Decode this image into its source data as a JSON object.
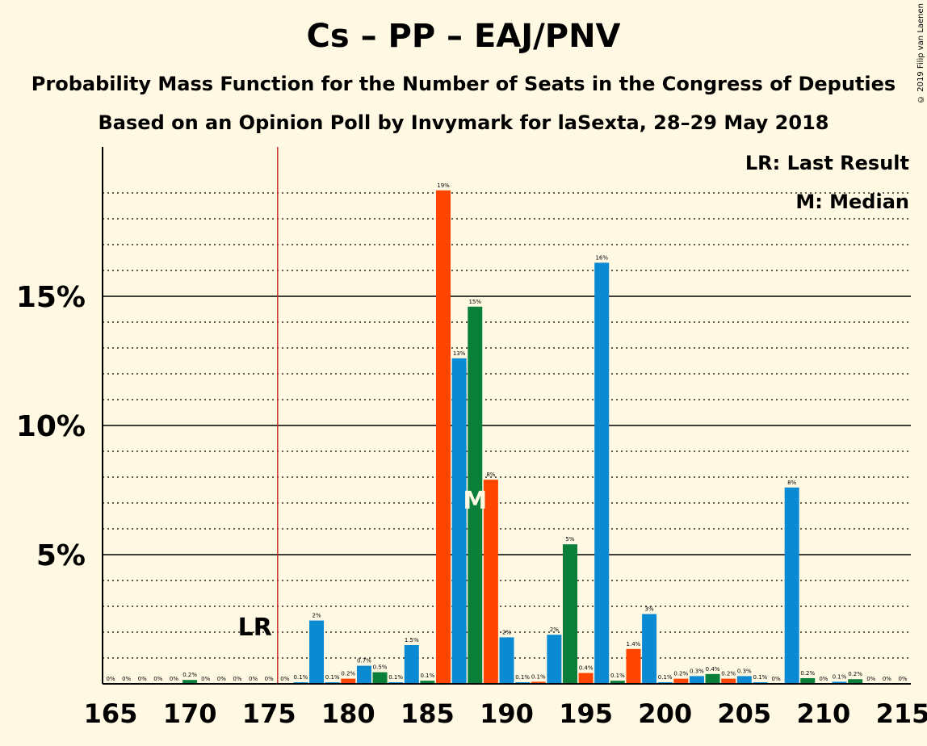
{
  "header": {
    "title": "Cs – PP – EAJ/PNV",
    "subtitle1": "Probability Mass Function for the Number of Seats in the Congress of Deputies",
    "subtitle2": "Based on an Opinion Poll by Invymark for laSexta, 28–29 May 2018",
    "copyright": "© 2019 Filip van Laenen"
  },
  "colors": {
    "background": "#fff8e2",
    "blue": "#0a8ad3",
    "orange": "#ff4500",
    "green": "#0a7f3a",
    "lr_line": "#cc2222"
  },
  "chart_data": {
    "type": "bar",
    "xlim": [
      165,
      215
    ],
    "ylim": [
      0,
      20
    ],
    "x_ticks": [
      "165",
      "170",
      "175",
      "180",
      "185",
      "190",
      "195",
      "200",
      "205",
      "210",
      "215"
    ],
    "y_ticks": [
      "5%",
      "10%",
      "15%"
    ],
    "legend": [
      "LR: Last Result",
      "M: Median"
    ],
    "last_result": {
      "seats": 176,
      "label": "LR"
    },
    "median": {
      "seats": 188,
      "label": "M"
    },
    "bars": [
      {
        "x": 165,
        "value": 0,
        "label": "0%",
        "color": "blue"
      },
      {
        "x": 166,
        "value": 0,
        "label": "0%",
        "color": "blue"
      },
      {
        "x": 167,
        "value": 0,
        "label": "0%",
        "color": "blue"
      },
      {
        "x": 168,
        "value": 0,
        "label": "0%",
        "color": "blue"
      },
      {
        "x": 169,
        "value": 0,
        "label": "0%",
        "color": "blue"
      },
      {
        "x": 170,
        "value": 0.15,
        "label": "0.2%",
        "color": "green"
      },
      {
        "x": 171,
        "value": 0,
        "label": "0%",
        "color": "blue"
      },
      {
        "x": 172,
        "value": 0,
        "label": "0%",
        "color": "blue"
      },
      {
        "x": 173,
        "value": 0,
        "label": "0%",
        "color": "blue"
      },
      {
        "x": 174,
        "value": 0,
        "label": "0%",
        "color": "blue"
      },
      {
        "x": 175,
        "value": 0,
        "label": "0%",
        "color": "blue"
      },
      {
        "x": 176,
        "value": 0,
        "label": "0%",
        "color": "blue"
      },
      {
        "x": 177,
        "value": 0.06,
        "label": "0.1%",
        "color": "blue"
      },
      {
        "x": 178,
        "value": 2.45,
        "label": "2%",
        "color": "blue"
      },
      {
        "x": 179,
        "value": 0.06,
        "label": "0.1%",
        "color": "blue"
      },
      {
        "x": 180,
        "value": 0.2,
        "label": "0.2%",
        "color": "orange"
      },
      {
        "x": 181,
        "value": 0.7,
        "label": "0.7%",
        "color": "blue"
      },
      {
        "x": 182,
        "value": 0.45,
        "label": "0.5%",
        "color": "green"
      },
      {
        "x": 183,
        "value": 0.06,
        "label": "0.1%",
        "color": "blue"
      },
      {
        "x": 184,
        "value": 1.5,
        "label": "1.5%",
        "color": "blue"
      },
      {
        "x": 185,
        "value": 0.12,
        "label": "0.1%",
        "color": "green"
      },
      {
        "x": 186,
        "value": 19.1,
        "label": "19%",
        "color": "orange"
      },
      {
        "x": 187,
        "value": 12.6,
        "label": "13%",
        "color": "blue"
      },
      {
        "x": 188,
        "value": 14.6,
        "label": "15%",
        "color": "green"
      },
      {
        "x": 189,
        "value": 7.9,
        "label": "8%",
        "color": "orange"
      },
      {
        "x": 190,
        "value": 1.8,
        "label": "2%",
        "color": "blue"
      },
      {
        "x": 191,
        "value": 0.06,
        "label": "0.1%",
        "color": "blue"
      },
      {
        "x": 192,
        "value": 0.08,
        "label": "0.1%",
        "color": "orange"
      },
      {
        "x": 193,
        "value": 1.9,
        "label": "2%",
        "color": "blue"
      },
      {
        "x": 194,
        "value": 5.4,
        "label": "5%",
        "color": "green"
      },
      {
        "x": 195,
        "value": 0.42,
        "label": "0.4%",
        "color": "orange"
      },
      {
        "x": 196,
        "value": 16.3,
        "label": "16%",
        "color": "blue"
      },
      {
        "x": 197,
        "value": 0.12,
        "label": "0.1%",
        "color": "green"
      },
      {
        "x": 198,
        "value": 1.35,
        "label": "1.4%",
        "color": "orange"
      },
      {
        "x": 199,
        "value": 2.7,
        "label": "3%",
        "color": "blue"
      },
      {
        "x": 200,
        "value": 0.06,
        "label": "0.1%",
        "color": "blue"
      },
      {
        "x": 201,
        "value": 0.2,
        "label": "0.2%",
        "color": "orange"
      },
      {
        "x": 202,
        "value": 0.3,
        "label": "0.3%",
        "color": "blue"
      },
      {
        "x": 203,
        "value": 0.38,
        "label": "0.4%",
        "color": "green"
      },
      {
        "x": 204,
        "value": 0.2,
        "label": "0.2%",
        "color": "orange"
      },
      {
        "x": 205,
        "value": 0.3,
        "label": "0.3%",
        "color": "blue"
      },
      {
        "x": 206,
        "value": 0.06,
        "label": "0.1%",
        "color": "blue"
      },
      {
        "x": 207,
        "value": 0,
        "label": "0%",
        "color": "blue"
      },
      {
        "x": 208,
        "value": 7.6,
        "label": "8%",
        "color": "blue"
      },
      {
        "x": 209,
        "value": 0.22,
        "label": "0.2%",
        "color": "green"
      },
      {
        "x": 210,
        "value": 0,
        "label": "0%",
        "color": "blue"
      },
      {
        "x": 211,
        "value": 0.08,
        "label": "0.1%",
        "color": "blue"
      },
      {
        "x": 212,
        "value": 0.18,
        "label": "0.2%",
        "color": "green"
      },
      {
        "x": 213,
        "value": 0,
        "label": "0%",
        "color": "blue"
      },
      {
        "x": 214,
        "value": 0,
        "label": "0%",
        "color": "blue"
      },
      {
        "x": 215,
        "value": 0,
        "label": "0%",
        "color": "blue"
      }
    ]
  }
}
